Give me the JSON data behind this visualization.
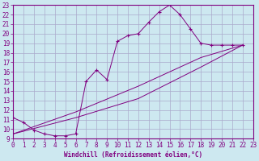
{
  "xlabel": "Windchill (Refroidissement éolien,°C)",
  "bg_color": "#cde8f0",
  "line_color": "#800080",
  "grid_color": "#aaaacc",
  "xmin": 0,
  "xmax": 23,
  "ymin": 9,
  "ymax": 23,
  "curve1_x": [
    0,
    1,
    2,
    3,
    4,
    5,
    6,
    7,
    8,
    9,
    10,
    11,
    12,
    13,
    14,
    15,
    16,
    17,
    18,
    19,
    20,
    21,
    22
  ],
  "curve1_y": [
    11.2,
    10.7,
    9.9,
    9.5,
    9.3,
    9.3,
    9.5,
    15.0,
    16.2,
    15.2,
    19.2,
    19.8,
    20.0,
    21.2,
    22.3,
    23.0,
    22.0,
    20.5,
    19.0,
    18.8,
    18.8,
    18.8,
    18.8
  ],
  "curve2_x": [
    0,
    6,
    12,
    18,
    22
  ],
  "curve2_y": [
    9.5,
    11.2,
    13.2,
    16.5,
    18.8
  ],
  "curve3_x": [
    0,
    6,
    12,
    18,
    22
  ],
  "curve3_y": [
    9.5,
    11.8,
    14.5,
    17.5,
    18.8
  ],
  "xticks": [
    0,
    1,
    2,
    3,
    4,
    5,
    6,
    7,
    8,
    9,
    10,
    11,
    12,
    13,
    14,
    15,
    16,
    17,
    18,
    19,
    20,
    21,
    22,
    23
  ],
  "yticks": [
    9,
    10,
    11,
    12,
    13,
    14,
    15,
    16,
    17,
    18,
    19,
    20,
    21,
    22,
    23
  ],
  "tick_fontsize": 5.5,
  "xlabel_fontsize": 5.5
}
